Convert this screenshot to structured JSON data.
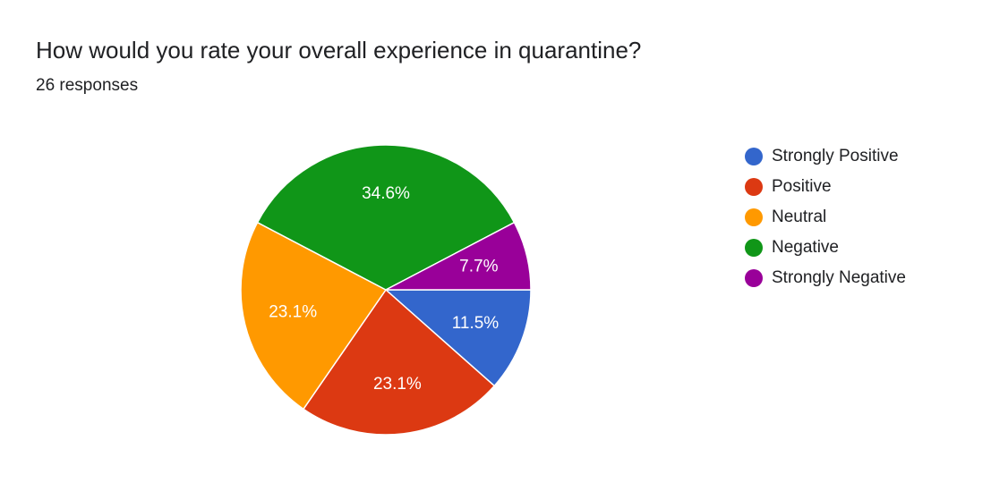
{
  "form_summary": {
    "question": "How would you rate your overall experience in quarantine?",
    "responses": "26 responses"
  },
  "chart_data": {
    "type": "pie",
    "title": "How would you rate your overall experience in quarantine?",
    "categories": [
      "Strongly Positive",
      "Positive",
      "Neutral",
      "Negative",
      "Strongly Negative"
    ],
    "values": [
      3,
      6,
      6,
      9,
      2
    ],
    "percent_labels": [
      "11.5%",
      "23.1%",
      "23.1%",
      "34.6%",
      "7.7%"
    ],
    "colors": [
      "#3366cc",
      "#dc3912",
      "#ff9900",
      "#109618",
      "#990099"
    ],
    "start_angle_deg": 0,
    "direction": "clockwise",
    "legend_position": "right"
  }
}
